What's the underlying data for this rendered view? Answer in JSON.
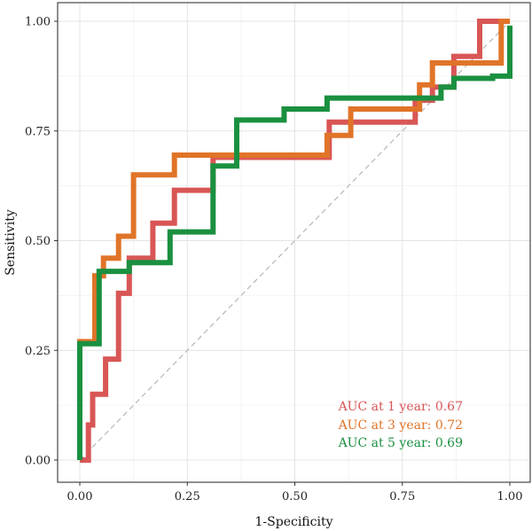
{
  "chart_data": {
    "type": "line",
    "title": "",
    "xlabel": "1-Specificity",
    "ylabel": "Sensitivity",
    "xlim": [
      0,
      1
    ],
    "ylim": [
      0,
      1
    ],
    "xticks": [
      0,
      0.25,
      0.5,
      0.75,
      1
    ],
    "yticks": [
      0,
      0.25,
      0.5,
      0.75,
      1
    ],
    "xtick_labels": [
      "0.00",
      "0.25",
      "0.50",
      "0.75",
      "1.00"
    ],
    "ytick_labels": [
      "0.00",
      "0.25",
      "0.50",
      "0.75",
      "1.00"
    ],
    "grid": true,
    "reference_line": {
      "type": "diagonal",
      "style": "dashed",
      "color": "#bbbbbb"
    },
    "annotations": [
      {
        "text": "AUC at 1 year: 0.67",
        "color": "#d95656"
      },
      {
        "text": "AUC at 3 year: 0.72",
        "color": "#e07428"
      },
      {
        "text": "AUC at 5 year: 0.69",
        "color": "#1a9040"
      }
    ],
    "series": [
      {
        "color": "#d95656",
        "x": [
          0,
          0.02,
          0.02,
          0.03,
          0.03,
          0.06,
          0.06,
          0.09,
          0.09,
          0.115,
          0.115,
          0.17,
          0.17,
          0.22,
          0.22,
          0.31,
          0.31,
          0.58,
          0.58,
          0.78,
          0.78,
          0.82,
          0.82,
          0.87,
          0.87,
          0.93,
          0.93,
          1.0
        ],
        "y": [
          0,
          0,
          0.08,
          0.08,
          0.15,
          0.15,
          0.23,
          0.23,
          0.38,
          0.38,
          0.46,
          0.46,
          0.54,
          0.54,
          0.615,
          0.615,
          0.69,
          0.69,
          0.77,
          0.77,
          0.82,
          0.82,
          0.85,
          0.85,
          0.92,
          0.92,
          1.0,
          1.0
        ]
      },
      {
        "color": "#e07428",
        "x": [
          0,
          0,
          0.035,
          0.035,
          0.055,
          0.055,
          0.09,
          0.09,
          0.125,
          0.125,
          0.17,
          0.17,
          0.22,
          0.22,
          0.575,
          0.575,
          0.63,
          0.63,
          0.79,
          0.79,
          0.82,
          0.82,
          0.89,
          0.89,
          0.98,
          0.98,
          1.0
        ],
        "y": [
          0,
          0.27,
          0.27,
          0.42,
          0.42,
          0.46,
          0.46,
          0.51,
          0.51,
          0.65,
          0.65,
          0.65,
          0.65,
          0.695,
          0.695,
          0.74,
          0.74,
          0.8,
          0.8,
          0.855,
          0.855,
          0.905,
          0.905,
          0.905,
          0.905,
          1.0,
          1.0
        ]
      },
      {
        "color": "#1a9040",
        "x": [
          0,
          0,
          0.045,
          0.045,
          0.115,
          0.115,
          0.21,
          0.21,
          0.31,
          0.31,
          0.365,
          0.365,
          0.475,
          0.475,
          0.575,
          0.575,
          0.84,
          0.84,
          0.87,
          0.87,
          0.96,
          0.96,
          1.0,
          1.0
        ],
        "y": [
          0,
          0.265,
          0.265,
          0.43,
          0.43,
          0.45,
          0.45,
          0.52,
          0.52,
          0.67,
          0.67,
          0.775,
          0.775,
          0.8,
          0.8,
          0.825,
          0.825,
          0.85,
          0.85,
          0.87,
          0.87,
          0.875,
          0.875,
          0.99
        ]
      }
    ]
  }
}
